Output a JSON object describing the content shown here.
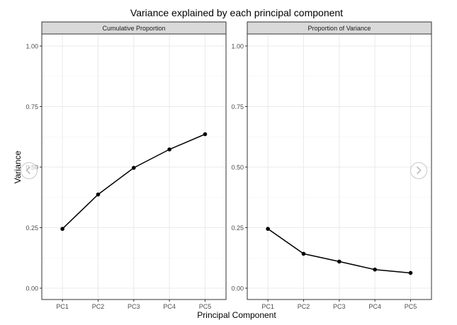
{
  "chart_data": {
    "type": "line",
    "title": "Variance explained by each principal component",
    "xlabel": "Principal Component",
    "ylabel": "Variance",
    "categories": [
      "PC1",
      "PC2",
      "PC3",
      "PC4",
      "PC5"
    ],
    "ylim": [
      0,
      1.05
    ],
    "yticks": [
      "0.00",
      "0.25",
      "0.50",
      "0.75",
      "1.00"
    ],
    "grid": true,
    "panels": [
      {
        "strip": "Cumulative Proportion",
        "values": [
          0.245,
          0.387,
          0.497,
          0.573,
          0.636
        ]
      },
      {
        "strip": "Proportion of Variance",
        "values": [
          0.245,
          0.142,
          0.11,
          0.077,
          0.063
        ]
      }
    ]
  },
  "colors": {
    "strip_bg": "#d9d9d9",
    "grid_major": "#ebebeb",
    "line": "#000000",
    "panel_border": "#333333"
  },
  "nav": {
    "prev_icon": "chevron-left-icon",
    "next_icon": "chevron-right-icon"
  }
}
